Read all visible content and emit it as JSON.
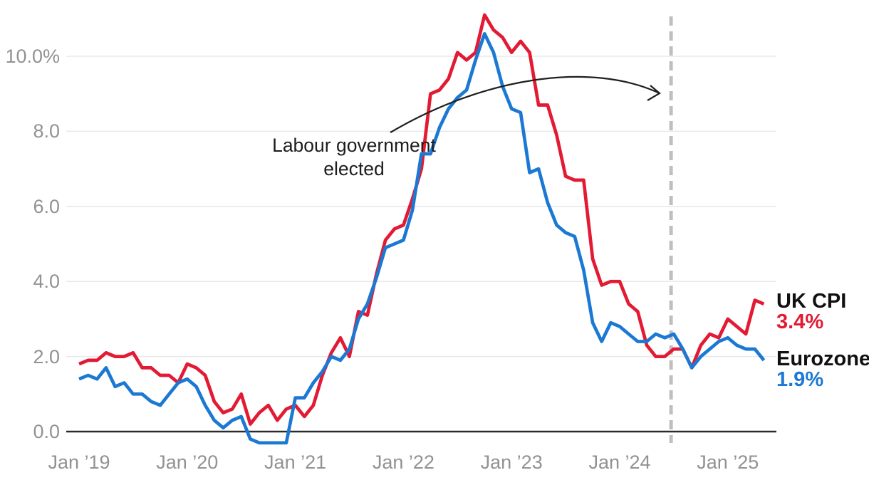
{
  "annotation": {
    "line1": "Labour government",
    "line2": "elected"
  },
  "colors": {
    "uk_line": "#e31a33",
    "eurozone_line": "#1b79d4",
    "gridline": "#e9e9e9",
    "zero_axis": "#2b2b2b",
    "event_dash": "#bfbfbf",
    "tick_text": "#929292",
    "arrow": "#1f1f1f"
  },
  "legend": {
    "uk_name": "UK CPI",
    "uk_value": "3.4%",
    "eurozone_name": "Eurozone",
    "eurozone_value": "1.9%"
  },
  "chart_data": {
    "type": "line",
    "title": "",
    "x_unit": "monthly, Jan 2019 to May 2025",
    "x_tick_labels": [
      "Jan ’19",
      "Jan ’20",
      "Jan ’21",
      "Jan ’22",
      "Jan ’23",
      "Jan ’24",
      "Jan ’25"
    ],
    "y_axis": {
      "ticks": [
        {
          "value": 10,
          "label": "10.0%"
        },
        {
          "value": 8,
          "label": "8.0"
        },
        {
          "value": 6,
          "label": "6.0"
        },
        {
          "value": 4,
          "label": "4.0"
        },
        {
          "value": 2,
          "label": "2.0"
        },
        {
          "value": 0,
          "label": "0.0"
        }
      ],
      "ylim": [
        -0.5,
        11.5
      ],
      "grid": true
    },
    "event_line": {
      "label": "Labour government elected",
      "month_index": 65.7
    },
    "series": [
      {
        "name": "UK CPI",
        "latest_value": "3.4%",
        "color": "#e31a33",
        "values": [
          1.8,
          1.9,
          1.9,
          2.1,
          2.0,
          2.0,
          2.1,
          1.7,
          1.7,
          1.5,
          1.5,
          1.3,
          1.8,
          1.7,
          1.5,
          0.8,
          0.5,
          0.6,
          1.0,
          0.2,
          0.5,
          0.7,
          0.3,
          0.6,
          0.7,
          0.4,
          0.7,
          1.5,
          2.1,
          2.5,
          2.0,
          3.2,
          3.1,
          4.2,
          5.1,
          5.4,
          5.5,
          6.2,
          7.0,
          9.0,
          9.1,
          9.4,
          10.1,
          9.9,
          10.1,
          11.1,
          10.7,
          10.5,
          10.1,
          10.4,
          10.1,
          8.7,
          8.7,
          7.9,
          6.8,
          6.7,
          6.7,
          4.6,
          3.9,
          4.0,
          4.0,
          3.4,
          3.2,
          2.3,
          2.0,
          2.0,
          2.2,
          2.2,
          1.7,
          2.3,
          2.6,
          2.5,
          3.0,
          2.8,
          2.6,
          3.5,
          3.4
        ]
      },
      {
        "name": "Eurozone",
        "latest_value": "1.9%",
        "color": "#1b79d4",
        "values": [
          1.4,
          1.5,
          1.4,
          1.7,
          1.2,
          1.3,
          1.0,
          1.0,
          0.8,
          0.7,
          1.0,
          1.3,
          1.4,
          1.2,
          0.7,
          0.3,
          0.1,
          0.3,
          0.4,
          -0.2,
          -0.3,
          -0.3,
          -0.3,
          -0.3,
          0.9,
          0.9,
          1.3,
          1.6,
          2.0,
          1.9,
          2.2,
          3.0,
          3.4,
          4.1,
          4.9,
          5.0,
          5.1,
          5.9,
          7.4,
          7.4,
          8.1,
          8.6,
          8.9,
          9.1,
          9.9,
          10.6,
          10.1,
          9.2,
          8.6,
          8.5,
          6.9,
          7.0,
          6.1,
          5.5,
          5.3,
          5.2,
          4.3,
          2.9,
          2.4,
          2.9,
          2.8,
          2.6,
          2.4,
          2.4,
          2.6,
          2.5,
          2.6,
          2.2,
          1.7,
          2.0,
          2.2,
          2.4,
          2.5,
          2.3,
          2.2,
          2.2,
          1.9
        ]
      }
    ]
  }
}
